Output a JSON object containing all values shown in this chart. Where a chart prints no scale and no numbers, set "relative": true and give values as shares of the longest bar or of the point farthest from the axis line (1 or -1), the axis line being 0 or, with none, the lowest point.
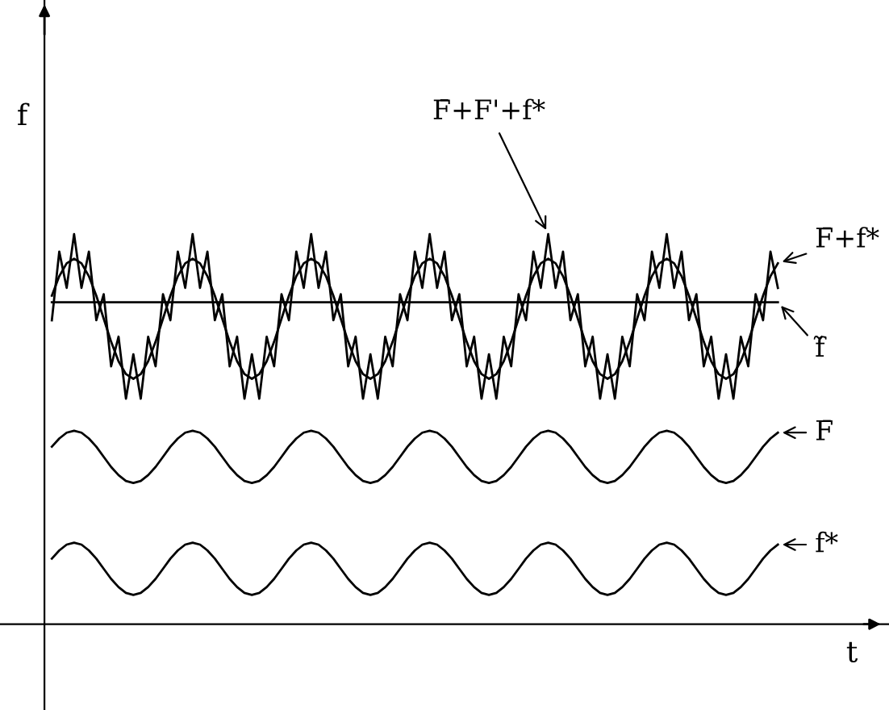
{
  "chart_data": {
    "type": "line",
    "relative": true,
    "tick_labels": false,
    "legend": "right",
    "xlabel": "t",
    "ylabel": "f",
    "categories": [
      null,
      null,
      null,
      null,
      null,
      null,
      null,
      null,
      null,
      null,
      null,
      null,
      null,
      null,
      null,
      null,
      null,
      null,
      null,
      null,
      null,
      null,
      null,
      null,
      null,
      null,
      null,
      null,
      null,
      null,
      null,
      null,
      null,
      null,
      null,
      null,
      null,
      null,
      null,
      null,
      null,
      null,
      null,
      null,
      null,
      null,
      null,
      null,
      null,
      null,
      null,
      null,
      null,
      null,
      null,
      null,
      null,
      null,
      null,
      null,
      null,
      null,
      null,
      null,
      null,
      null,
      null,
      null,
      null,
      null,
      null,
      null,
      null,
      null,
      null,
      null,
      null,
      null,
      null,
      null,
      null,
      null,
      null,
      null,
      null,
      null,
      null,
      null,
      null,
      null,
      null,
      null,
      null,
      null,
      null,
      null,
      null,
      null,
      null
    ],
    "series": [
      {
        "name": "F̄+F'+f*",
        "color": "#000000",
        "values": [
          0.779,
          0.955,
          0.862,
          1,
          0.862,
          0.955,
          0.779,
          0.846,
          0.661,
          0.737,
          0.578,
          0.692,
          0.578,
          0.737,
          0.661,
          0.846,
          0.779,
          0.955,
          0.862,
          1,
          0.862,
          0.955,
          0.779,
          0.846,
          0.661,
          0.737,
          0.578,
          0.692,
          0.578,
          0.737,
          0.661,
          0.846,
          0.779,
          0.955,
          0.862,
          1,
          0.862,
          0.955,
          0.779,
          0.846,
          0.661,
          0.737,
          0.578,
          0.692,
          0.578,
          0.737,
          0.661,
          0.846,
          0.779,
          0.955,
          0.862,
          1,
          0.862,
          0.955,
          0.779,
          0.846,
          0.661,
          0.737,
          0.578,
          0.692,
          0.578,
          0.737,
          0.661,
          0.846,
          0.779,
          0.955,
          0.862,
          1,
          0.862,
          0.955,
          0.779,
          0.846,
          0.661,
          0.737,
          0.578,
          0.692,
          0.578,
          0.737,
          0.661,
          0.846,
          0.779,
          0.955,
          0.862,
          1,
          0.862,
          0.955,
          0.779,
          0.846,
          0.661,
          0.737,
          0.578,
          0.692,
          0.578,
          0.737,
          0.661,
          0.846,
          0.779,
          0.955,
          0.862
        ]
      },
      {
        "name": "F̄+f*",
        "color": "#000000",
        "values": [
          0.842,
          0.892,
          0.925,
          0.937,
          0.925,
          0.892,
          0.842,
          0.783,
          0.724,
          0.674,
          0.641,
          0.629,
          0.641,
          0.674,
          0.724,
          0.783,
          0.842,
          0.892,
          0.925,
          0.937,
          0.925,
          0.892,
          0.842,
          0.783,
          0.724,
          0.674,
          0.641,
          0.629,
          0.641,
          0.674,
          0.724,
          0.783,
          0.842,
          0.892,
          0.925,
          0.937,
          0.925,
          0.892,
          0.842,
          0.783,
          0.724,
          0.674,
          0.641,
          0.629,
          0.641,
          0.674,
          0.724,
          0.783,
          0.842,
          0.892,
          0.925,
          0.937,
          0.925,
          0.892,
          0.842,
          0.783,
          0.724,
          0.674,
          0.641,
          0.629,
          0.641,
          0.674,
          0.724,
          0.783,
          0.842,
          0.892,
          0.925,
          0.937,
          0.925,
          0.892,
          0.842,
          0.783,
          0.724,
          0.674,
          0.641,
          0.629,
          0.641,
          0.674,
          0.724,
          0.783,
          0.842,
          0.892,
          0.925,
          0.937,
          0.925,
          0.892,
          0.842,
          0.783,
          0.724,
          0.674,
          0.641,
          0.629,
          0.641,
          0.674,
          0.724,
          0.783,
          0.842,
          0.892,
          0.925
        ]
      },
      {
        "name": "f̃",
        "color": "#000000",
        "values": [
          0.825,
          0.825,
          0.825,
          0.825,
          0.825,
          0.825,
          0.825,
          0.825,
          0.825,
          0.825,
          0.825,
          0.825,
          0.825,
          0.825,
          0.825,
          0.825,
          0.825,
          0.825,
          0.825,
          0.825,
          0.825,
          0.825,
          0.825,
          0.825,
          0.825,
          0.825,
          0.825,
          0.825,
          0.825,
          0.825,
          0.825,
          0.825,
          0.825,
          0.825,
          0.825,
          0.825,
          0.825,
          0.825,
          0.825,
          0.825,
          0.825,
          0.825,
          0.825,
          0.825,
          0.825,
          0.825,
          0.825,
          0.825,
          0.825,
          0.825,
          0.825,
          0.825,
          0.825,
          0.825,
          0.825,
          0.825,
          0.825,
          0.825,
          0.825,
          0.825,
          0.825,
          0.825,
          0.825,
          0.825,
          0.825,
          0.825,
          0.825,
          0.825,
          0.825,
          0.825,
          0.825,
          0.825,
          0.825,
          0.825,
          0.825,
          0.825,
          0.825,
          0.825,
          0.825,
          0.825,
          0.825,
          0.825,
          0.825,
          0.825,
          0.825,
          0.825,
          0.825,
          0.825,
          0.825,
          0.825,
          0.825,
          0.825,
          0.825,
          0.825,
          0.825,
          0.825,
          0.825,
          0.825,
          0.825
        ]
      },
      {
        "name": "F̄",
        "color": "#000000",
        "values": [
          0.455,
          0.476,
          0.491,
          0.496,
          0.491,
          0.476,
          0.455,
          0.429,
          0.403,
          0.382,
          0.367,
          0.362,
          0.367,
          0.382,
          0.403,
          0.429,
          0.455,
          0.476,
          0.491,
          0.496,
          0.491,
          0.476,
          0.455,
          0.429,
          0.403,
          0.382,
          0.367,
          0.362,
          0.367,
          0.382,
          0.403,
          0.429,
          0.455,
          0.476,
          0.491,
          0.496,
          0.491,
          0.476,
          0.455,
          0.429,
          0.403,
          0.382,
          0.367,
          0.362,
          0.367,
          0.382,
          0.403,
          0.429,
          0.455,
          0.476,
          0.491,
          0.496,
          0.491,
          0.476,
          0.455,
          0.429,
          0.403,
          0.382,
          0.367,
          0.362,
          0.367,
          0.382,
          0.403,
          0.429,
          0.455,
          0.476,
          0.491,
          0.496,
          0.491,
          0.476,
          0.455,
          0.429,
          0.403,
          0.382,
          0.367,
          0.362,
          0.367,
          0.382,
          0.403,
          0.429,
          0.455,
          0.476,
          0.491,
          0.496,
          0.491,
          0.476,
          0.455,
          0.429,
          0.403,
          0.382,
          0.367,
          0.362,
          0.367,
          0.382,
          0.403,
          0.429,
          0.455,
          0.476,
          0.491
        ]
      },
      {
        "name": "f*",
        "color": "#000000",
        "values": [
          0.168,
          0.189,
          0.204,
          0.209,
          0.204,
          0.189,
          0.168,
          0.142,
          0.116,
          0.095,
          0.08,
          0.075,
          0.08,
          0.095,
          0.116,
          0.142,
          0.168,
          0.189,
          0.204,
          0.209,
          0.204,
          0.189,
          0.168,
          0.142,
          0.116,
          0.095,
          0.08,
          0.075,
          0.08,
          0.095,
          0.116,
          0.142,
          0.168,
          0.189,
          0.204,
          0.209,
          0.204,
          0.189,
          0.168,
          0.142,
          0.116,
          0.095,
          0.08,
          0.075,
          0.08,
          0.095,
          0.116,
          0.142,
          0.168,
          0.189,
          0.204,
          0.209,
          0.204,
          0.189,
          0.168,
          0.142,
          0.116,
          0.095,
          0.08,
          0.075,
          0.08,
          0.095,
          0.116,
          0.142,
          0.168,
          0.189,
          0.204,
          0.209,
          0.204,
          0.189,
          0.168,
          0.142,
          0.116,
          0.095,
          0.08,
          0.075,
          0.08,
          0.095,
          0.116,
          0.142,
          0.168,
          0.189,
          0.204,
          0.209,
          0.204,
          0.189,
          0.168,
          0.142,
          0.116,
          0.095,
          0.08,
          0.075,
          0.08,
          0.095,
          0.116,
          0.142,
          0.168,
          0.189,
          0.204
        ]
      }
    ]
  }
}
